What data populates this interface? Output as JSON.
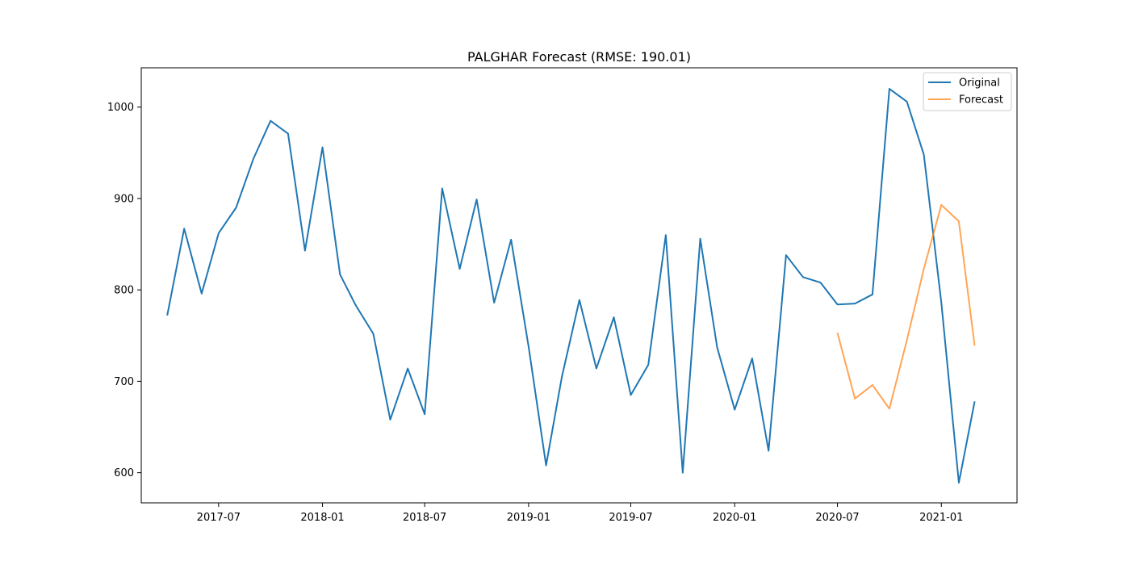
{
  "chart_data": {
    "type": "line",
    "title": "PALGHAR Forecast (RMSE: 190.01)",
    "xlabel": "",
    "ylabel": "",
    "x_ticks": [
      "2017-07",
      "2018-01",
      "2018-07",
      "2019-01",
      "2019-07",
      "2020-01",
      "2020-07",
      "2021-01"
    ],
    "y_ticks": [
      600,
      700,
      800,
      900,
      1000
    ],
    "xlim": [
      "2017-02-14",
      "2021-05-15"
    ],
    "ylim": [
      567,
      1043
    ],
    "grid": false,
    "legend_position": "top-right",
    "series": [
      {
        "name": "Original",
        "color": "#1f77b4",
        "x": [
          "2017-04-01",
          "2017-05-01",
          "2017-06-01",
          "2017-07-01",
          "2017-08-01",
          "2017-09-01",
          "2017-10-01",
          "2017-11-01",
          "2017-12-01",
          "2018-01-01",
          "2018-02-01",
          "2018-03-01",
          "2018-04-01",
          "2018-05-01",
          "2018-06-01",
          "2018-07-01",
          "2018-08-01",
          "2018-09-01",
          "2018-10-01",
          "2018-11-01",
          "2018-12-01",
          "2019-01-01",
          "2019-02-01",
          "2019-03-01",
          "2019-04-01",
          "2019-05-01",
          "2019-06-01",
          "2019-07-01",
          "2019-08-01",
          "2019-09-01",
          "2019-10-01",
          "2019-11-01",
          "2019-12-01",
          "2020-01-01",
          "2020-02-01",
          "2020-03-01",
          "2020-04-01",
          "2020-05-01",
          "2020-06-01",
          "2020-07-01",
          "2020-08-01",
          "2020-09-01",
          "2020-10-01",
          "2020-11-01",
          "2020-12-01",
          "2021-01-01",
          "2021-02-01",
          "2021-03-01"
        ],
        "y": [
          772,
          867,
          796,
          862,
          890,
          944,
          985,
          971,
          843,
          956,
          817,
          783,
          752,
          658,
          714,
          664,
          911,
          823,
          899,
          786,
          855,
          738,
          608,
          705,
          789,
          714,
          770,
          685,
          718,
          860,
          600,
          856,
          737,
          669,
          725,
          624,
          838,
          814,
          808,
          784,
          785,
          795,
          1020,
          1006,
          948,
          786,
          589,
          678
        ]
      },
      {
        "name": "Forecast",
        "color": "#ff7f0e",
        "x": [
          "2020-07-01",
          "2020-08-01",
          "2020-09-01",
          "2020-10-01",
          "2020-11-01",
          "2020-12-01",
          "2021-01-01",
          "2021-02-01",
          "2021-03-01"
        ],
        "y": [
          753,
          681,
          696,
          670,
          745,
          823,
          893,
          875,
          739
        ]
      }
    ]
  }
}
